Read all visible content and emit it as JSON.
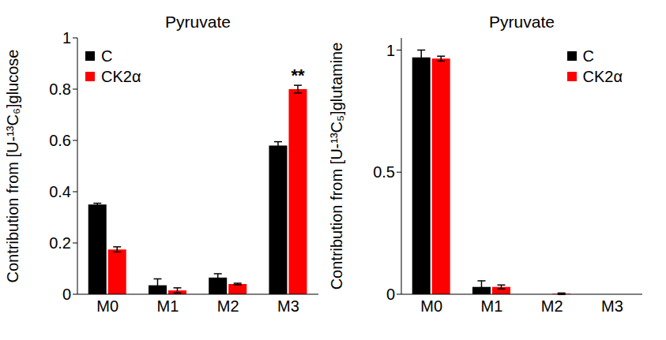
{
  "chart_data": [
    {
      "type": "bar",
      "title": "Pyruvate",
      "y_label": "Contribution from [U-¹³C₆]glucose",
      "categories": [
        "M0",
        "M1",
        "M2",
        "M3"
      ],
      "series": [
        {
          "name": "C",
          "color": "#000000",
          "values": [
            0.35,
            0.035,
            0.065,
            0.58
          ],
          "errors": [
            0.005,
            0.025,
            0.015,
            0.015
          ]
        },
        {
          "name": "CK2α",
          "color": "#ff0000",
          "values": [
            0.175,
            0.015,
            0.04,
            0.8
          ],
          "errors": [
            0.01,
            0.01,
            0.003,
            0.015
          ]
        }
      ],
      "ylim": [
        0,
        1
      ],
      "yticks": [
        0,
        0.2,
        0.4,
        0.6,
        0.8,
        1
      ],
      "grid": false,
      "legend": "upper left",
      "annotations": [
        {
          "text": "**",
          "category": "M3",
          "series": "CK2α"
        }
      ]
    },
    {
      "type": "bar",
      "title": "Pyruvate",
      "y_label": "Contribution from [U-¹³C₅]glutamine",
      "categories": [
        "M0",
        "M1",
        "M2",
        "M3"
      ],
      "series": [
        {
          "name": "C",
          "color": "#000000",
          "values": [
            0.97,
            0.03,
            0,
            0
          ],
          "errors": [
            0.03,
            0.025,
            0,
            0
          ]
        },
        {
          "name": "CK2α",
          "color": "#ff0000",
          "values": [
            0.965,
            0.03,
            0.002,
            0
          ],
          "errors": [
            0.01,
            0.008,
            0.003,
            0
          ]
        }
      ],
      "ylim": [
        0,
        1.05
      ],
      "yticks": [
        0,
        0.5,
        1
      ],
      "grid": false,
      "legend": "upper right"
    }
  ]
}
